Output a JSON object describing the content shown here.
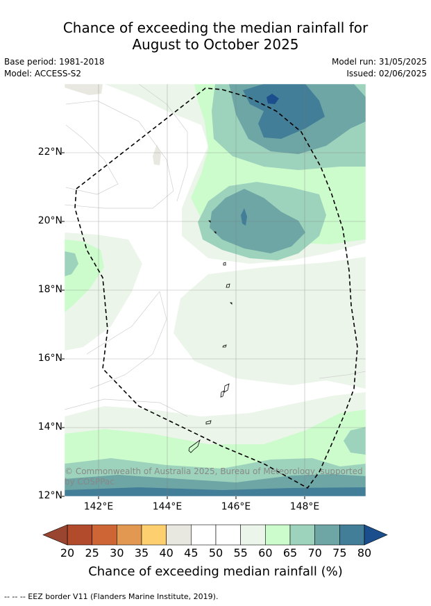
{
  "title_line1": "Chance of exceeding the median rainfall for",
  "title_line2": "August to October 2025",
  "meta": {
    "base_period": "Base period: 1981-2018",
    "model": "Model: ACCESS-S2",
    "model_run": "Model run: 31/05/2025",
    "issued": "Issued: 02/06/2025"
  },
  "axes": {
    "lat_labels": [
      "22°N",
      "20°N",
      "18°N",
      "16°N",
      "14°N",
      "12°N"
    ],
    "lon_labels": [
      "142°E",
      "144°E",
      "146°E",
      "148°E"
    ]
  },
  "copyright_line1": "© Commonwealth of Australia 2025, Bureau of Meteorology, supported",
  "copyright_line2": "by COSPPac",
  "colorbar": {
    "labels": [
      "20",
      "25",
      "30",
      "35",
      "40",
      "45",
      "50",
      "55",
      "60",
      "65",
      "70",
      "75",
      "80"
    ],
    "colors": [
      "#b24a2c",
      "#cd6634",
      "#e29850",
      "#fdcf6f",
      "#e8e8e0",
      "#ffffff",
      "#ffffff",
      "#ecf5ea",
      "#ccfbcc",
      "#9dd3bc",
      "#6ea5a5",
      "#437e99"
    ],
    "low_color": "#9a4530",
    "high_color": "#1b4e8d",
    "title": "Chance of exceeding median rainfall (%)"
  },
  "legend_footer": "--  --  -- EEZ border V11 (Flanders Marine Institute, 2019)."
}
